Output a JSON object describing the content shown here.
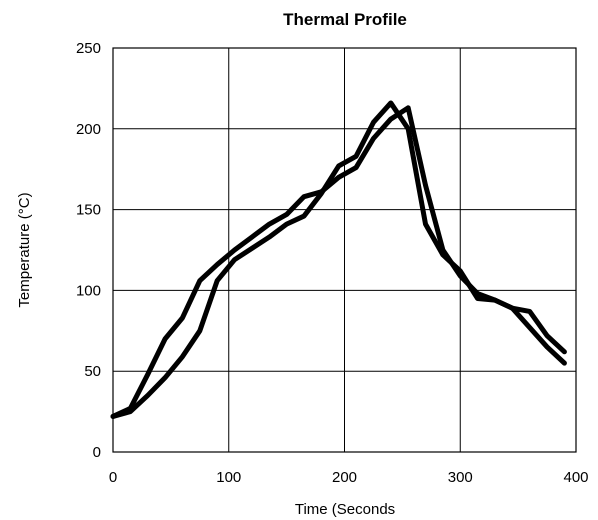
{
  "chart_data": {
    "type": "line",
    "title": "Thermal Profile",
    "xlabel": "Time (Seconds",
    "ylabel": "Temperature (°C)",
    "xlim": [
      0,
      400
    ],
    "ylim": [
      0,
      250
    ],
    "xticks": [
      0,
      100,
      200,
      300,
      400
    ],
    "yticks": [
      0,
      50,
      100,
      150,
      200,
      250
    ],
    "grid": true,
    "legend": "none",
    "series": [
      {
        "color": "#000000",
        "x": [
          0,
          15,
          30,
          45,
          60,
          75,
          90,
          105,
          120,
          135,
          150,
          165,
          180,
          195,
          210,
          225,
          240,
          255,
          270,
          285,
          300,
          315,
          330,
          345,
          360,
          375,
          390
        ],
        "y": [
          22,
          27,
          48,
          70,
          83,
          106,
          116,
          125,
          133,
          141,
          147,
          158,
          161,
          170,
          176,
          194,
          206,
          213,
          165,
          125,
          109,
          98,
          94,
          89,
          77,
          65,
          55
        ]
      },
      {
        "color": "#000000",
        "x": [
          0,
          15,
          30,
          45,
          60,
          75,
          90,
          105,
          120,
          135,
          150,
          165,
          180,
          195,
          210,
          225,
          240,
          255,
          270,
          285,
          300,
          315,
          330,
          345,
          360,
          375,
          390
        ],
        "y": [
          22,
          25,
          35,
          46,
          59,
          75,
          106,
          119,
          126,
          133,
          141,
          146,
          160,
          177,
          183,
          204,
          216,
          200,
          141,
          122,
          112,
          95,
          94,
          89,
          87,
          72,
          62
        ]
      }
    ]
  }
}
